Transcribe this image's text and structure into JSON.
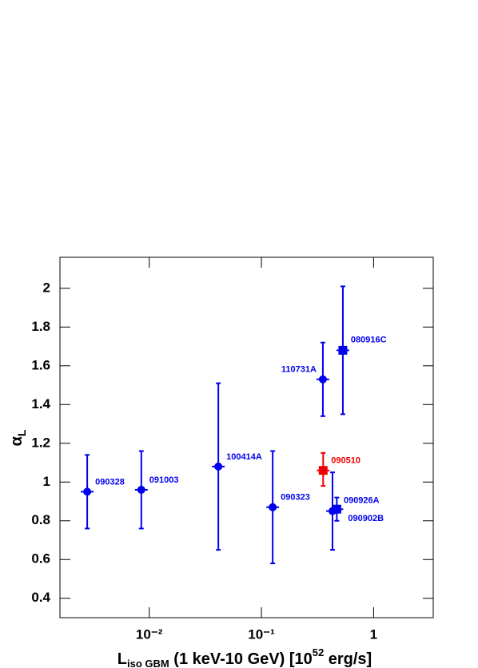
{
  "chart_data": {
    "type": "scatter",
    "xlabel": [
      "L",
      "iso GBM",
      " (1 keV-10 GeV) [10",
      "52",
      " erg/s]"
    ],
    "ylabel": [
      "α",
      "L"
    ],
    "xscale": "log",
    "xlim": [
      0.0016,
      3.4
    ],
    "ylim": [
      0.3,
      2.16
    ],
    "xticks": [
      {
        "value": 0.01,
        "label": "10⁻²"
      },
      {
        "value": 0.1,
        "label": "10⁻¹"
      },
      1
    ],
    "yticks": [
      0.4,
      0.6,
      0.8,
      1,
      1.2,
      1.4,
      1.6,
      1.8,
      2
    ],
    "points": [
      {
        "label": "090328",
        "x": 0.0028,
        "y": 0.95,
        "y_low": 0.76,
        "y_high": 1.14,
        "marker": "circle",
        "color": "#0000ee"
      },
      {
        "label": "091003",
        "x": 0.0085,
        "y": 0.96,
        "y_low": 0.76,
        "y_high": 1.16,
        "marker": "circle",
        "color": "#0000ee"
      },
      {
        "label": "100414A",
        "x": 0.0413,
        "y": 1.08,
        "y_low": 0.65,
        "y_high": 1.51,
        "marker": "circle",
        "color": "#0000ee"
      },
      {
        "label": "090323",
        "x": 0.126,
        "y": 0.87,
        "y_low": 0.58,
        "y_high": 1.16,
        "marker": "circle",
        "color": "#0000ee"
      },
      {
        "label": "110731A",
        "x": 0.353,
        "y": 1.53,
        "y_low": 1.34,
        "y_high": 1.72,
        "marker": "circle",
        "color": "#0000ee"
      },
      {
        "label": "080916C",
        "x": 0.532,
        "y": 1.68,
        "y_low": 1.35,
        "y_high": 2.01,
        "marker": "square",
        "color": "#0000ee"
      },
      {
        "label": "090510",
        "x": 0.355,
        "y": 1.06,
        "y_low": 0.98,
        "y_high": 1.15,
        "marker": "square",
        "color": "#ee0000"
      },
      {
        "label": "090926A",
        "x": 0.43,
        "y": 0.85,
        "y_low": 0.65,
        "y_high": 1.05,
        "marker": "circle",
        "color": "#0000ee"
      },
      {
        "label": "090902B",
        "x": 0.47,
        "y": 0.86,
        "y_low": 0.8,
        "y_high": 0.92,
        "marker": "square",
        "color": "#0000ee"
      }
    ]
  }
}
